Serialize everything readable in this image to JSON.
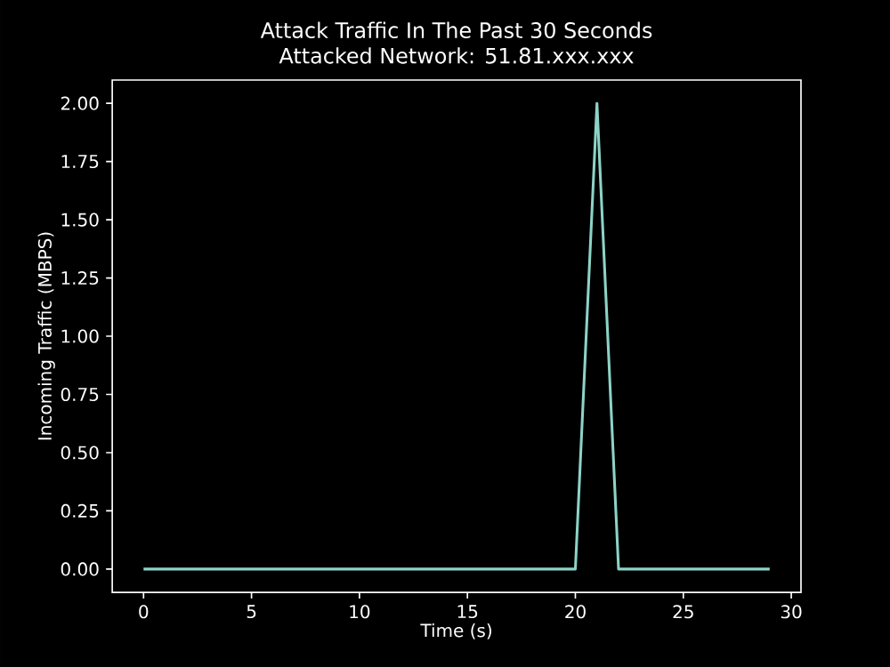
{
  "chart_data": {
    "type": "line",
    "title": "Attack Traffic In The Past 30 Seconds",
    "subtitle": "Attacked Network: 51.81.xxx.xxx",
    "xlabel": "Time (s)",
    "ylabel": "Incoming Traffic (MBPS)",
    "x": [
      0,
      1,
      2,
      3,
      4,
      5,
      6,
      7,
      8,
      9,
      10,
      11,
      12,
      13,
      14,
      15,
      16,
      17,
      18,
      19,
      20,
      21,
      22,
      23,
      24,
      25,
      26,
      27,
      28,
      29
    ],
    "series": [
      {
        "color": "#8dd3c7",
        "values": [
          0,
          0,
          0,
          0,
          0,
          0,
          0,
          0,
          0,
          0,
          0,
          0,
          0,
          0,
          0,
          0,
          0,
          0,
          0,
          0,
          0,
          2,
          0,
          0,
          0,
          0,
          0,
          0,
          0,
          0
        ]
      }
    ],
    "xlim": [
      -1.45,
      30.45
    ],
    "ylim": [
      -0.1,
      2.1
    ],
    "xticks": [
      0,
      5,
      10,
      15,
      20,
      25,
      30
    ],
    "yticks": [
      {
        "value": 0,
        "label": "0.00"
      },
      {
        "value": 0.25,
        "label": "0.25"
      },
      {
        "value": 0.5,
        "label": "0.50"
      },
      {
        "value": 0.75,
        "label": "0.75"
      },
      {
        "value": 1,
        "label": "1.00"
      },
      {
        "value": 1.25,
        "label": "1.25"
      },
      {
        "value": 1.5,
        "label": "1.50"
      },
      {
        "value": 1.75,
        "label": "1.75"
      },
      {
        "value": 2,
        "label": "2.00"
      }
    ],
    "grid": false,
    "marker": "none",
    "line_style": "solid"
  }
}
